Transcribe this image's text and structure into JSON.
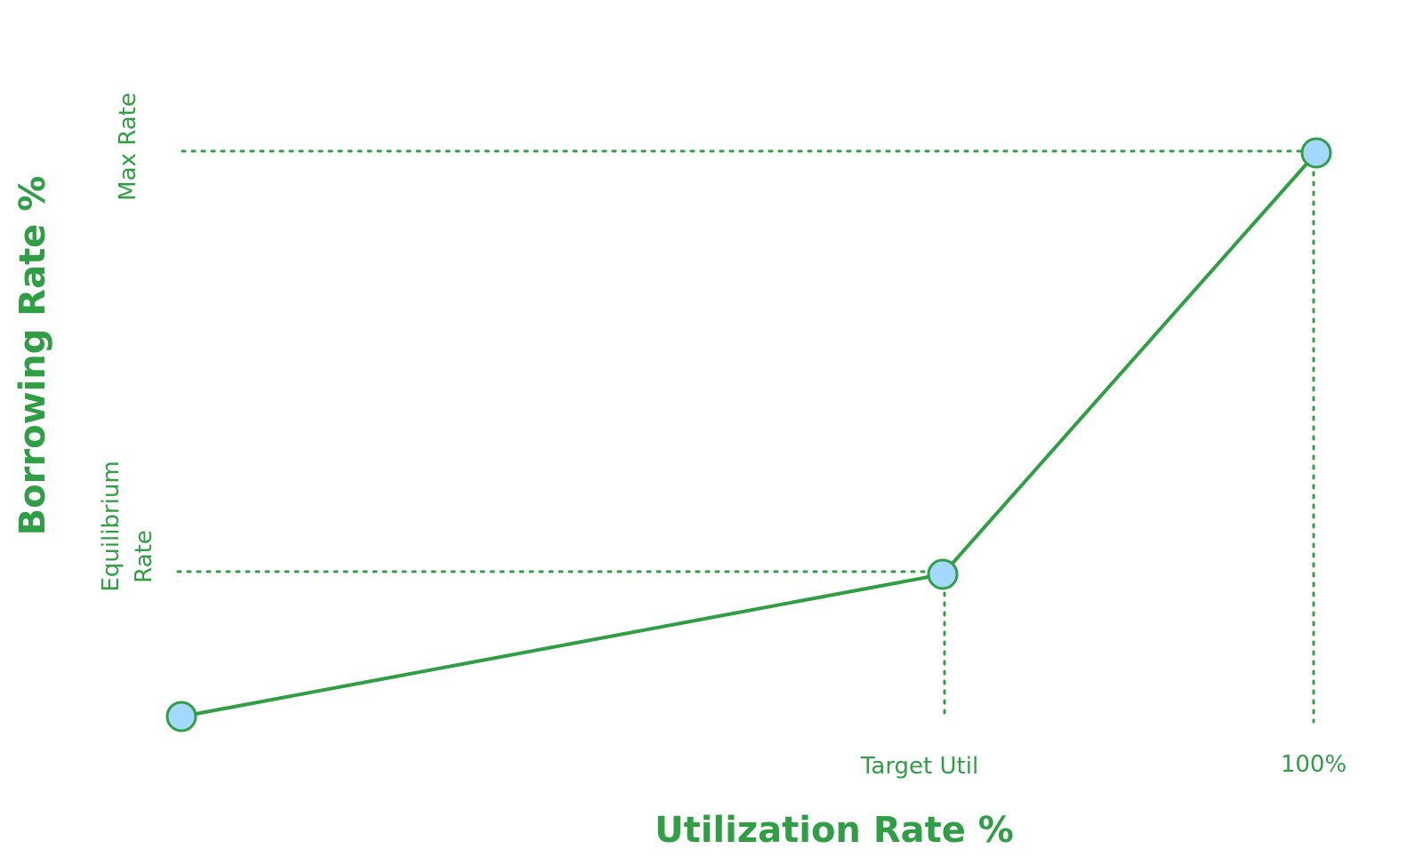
{
  "colors": {
    "stroke": "#2f9e44",
    "point_fill": "#a5d8ff"
  },
  "axis": {
    "x_title": "Utilization Rate %",
    "y_title": "Borrowing Rate %"
  },
  "markers": {
    "x": [
      {
        "id": "target",
        "label": "Target Util"
      },
      {
        "id": "full",
        "label": "100%"
      }
    ],
    "y": [
      {
        "id": "max",
        "label": "Max Rate"
      },
      {
        "id": "equilibrium",
        "label_line1": "Equilibrium",
        "label_line2": "Rate"
      }
    ]
  },
  "curve": {
    "points": [
      {
        "id": "origin"
      },
      {
        "id": "kink"
      },
      {
        "id": "max"
      }
    ]
  }
}
